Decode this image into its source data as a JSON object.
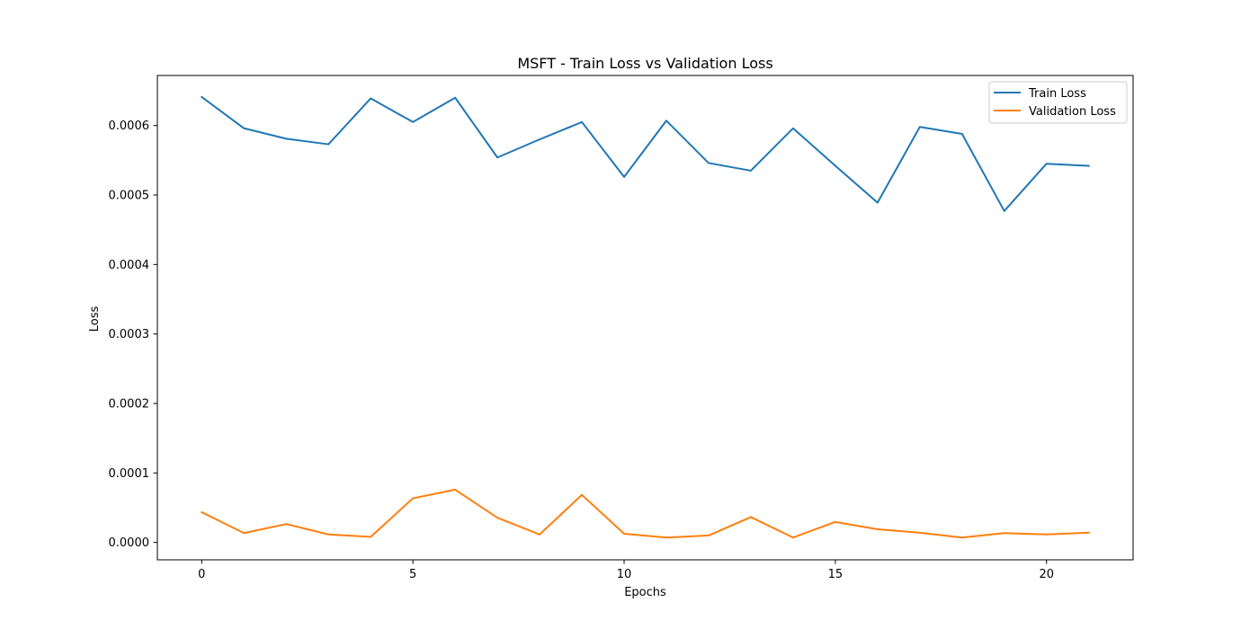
{
  "chart_data": {
    "type": "line",
    "title": "MSFT - Train Loss vs Validation Loss",
    "xlabel": "Epochs",
    "ylabel": "Loss",
    "xlim": [
      -1.05,
      22.05
    ],
    "ylim": [
      -2.5e-05,
      0.000672
    ],
    "xticks": [
      0,
      5,
      10,
      15,
      20
    ],
    "xtick_labels": [
      "0",
      "5",
      "10",
      "15",
      "20"
    ],
    "yticks": [
      0.0,
      0.0001,
      0.0002,
      0.0003,
      0.0004,
      0.0005,
      0.0006
    ],
    "ytick_labels": [
      "0.0000",
      "0.0001",
      "0.0002",
      "0.0003",
      "0.0004",
      "0.0005",
      "0.0006"
    ],
    "legend_position": "top-right",
    "grid": false,
    "x": [
      0,
      1,
      2,
      3,
      4,
      5,
      6,
      7,
      8,
      9,
      10,
      11,
      12,
      13,
      14,
      15,
      16,
      17,
      18,
      19,
      20,
      21
    ],
    "series": [
      {
        "name": "Train Loss",
        "color": "#1f77b4",
        "values": [
          0.000641,
          0.000596,
          0.000581,
          0.000573,
          0.000639,
          0.000605,
          0.00064,
          0.000554,
          0.00058,
          0.000605,
          0.000526,
          0.000607,
          0.000546,
          0.000535,
          0.000596,
          0.000542,
          0.000489,
          0.000598,
          0.000588,
          0.000477,
          0.000545,
          0.000542
        ]
      },
      {
        "name": "Validation Loss",
        "color": "#ff7f0e",
        "values": [
          4.35e-05,
          1.35e-05,
          2.65e-05,
          1.15e-05,
          8e-06,
          6.35e-05,
          7.6e-05,
          3.55e-05,
          1.15e-05,
          6.85e-05,
          1.25e-05,
          7e-06,
          1e-05,
          3.65e-05,
          7e-06,
          2.95e-05,
          1.9e-05,
          1.4e-05,
          7e-06,
          1.35e-05,
          1.15e-05,
          1.4e-05
        ]
      }
    ]
  }
}
